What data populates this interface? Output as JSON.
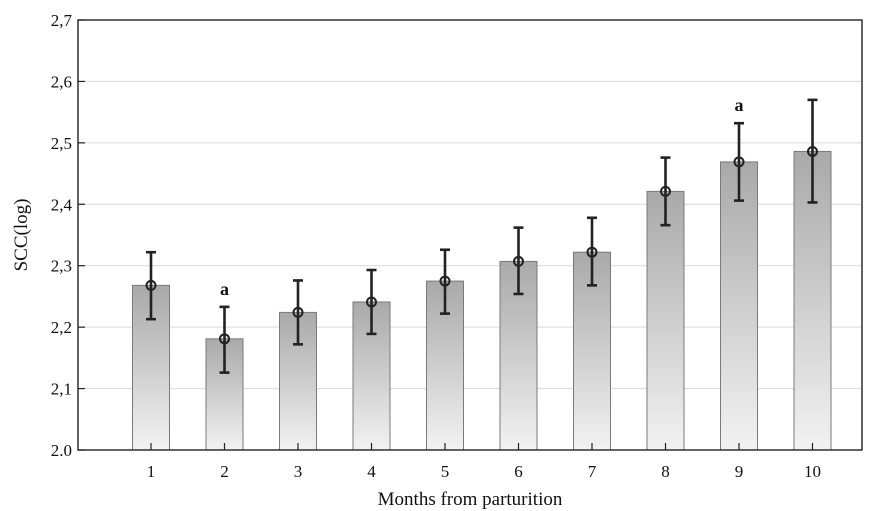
{
  "chart_data": {
    "type": "bar",
    "title": "",
    "xlabel": "Months from parturition",
    "ylabel": "SCC(log)",
    "categories": [
      "1",
      "2",
      "3",
      "4",
      "5",
      "6",
      "7",
      "8",
      "9",
      "10"
    ],
    "values": [
      2.268,
      2.181,
      2.224,
      2.241,
      2.275,
      2.307,
      2.322,
      2.421,
      2.469,
      2.486
    ],
    "error_low": [
      2.213,
      2.126,
      2.172,
      2.189,
      2.222,
      2.254,
      2.268,
      2.366,
      2.406,
      2.403
    ],
    "error_high": [
      2.322,
      2.233,
      2.276,
      2.293,
      2.326,
      2.362,
      2.378,
      2.476,
      2.532,
      2.57
    ],
    "annotations": [
      {
        "category": "2",
        "text": "a"
      },
      {
        "category": "9",
        "text": "a"
      }
    ],
    "ylim": [
      2.0,
      2.7
    ],
    "yticks": [
      2.0,
      2.1,
      2.2,
      2.3,
      2.4,
      2.5,
      2.6,
      2.7
    ],
    "ytick_labels": [
      "2.0",
      "2,1",
      "2,2",
      "2,3",
      "2,4",
      "2,5",
      "2,6",
      "2,7"
    ],
    "grid": true,
    "colors": {
      "bar_top": "#a9a9a9",
      "bar_bottom": "#f2f2f2",
      "bar_edge": "#7a7a7a",
      "error": "#222222",
      "grid": "#d9d9d9",
      "axis": "#222222"
    }
  }
}
